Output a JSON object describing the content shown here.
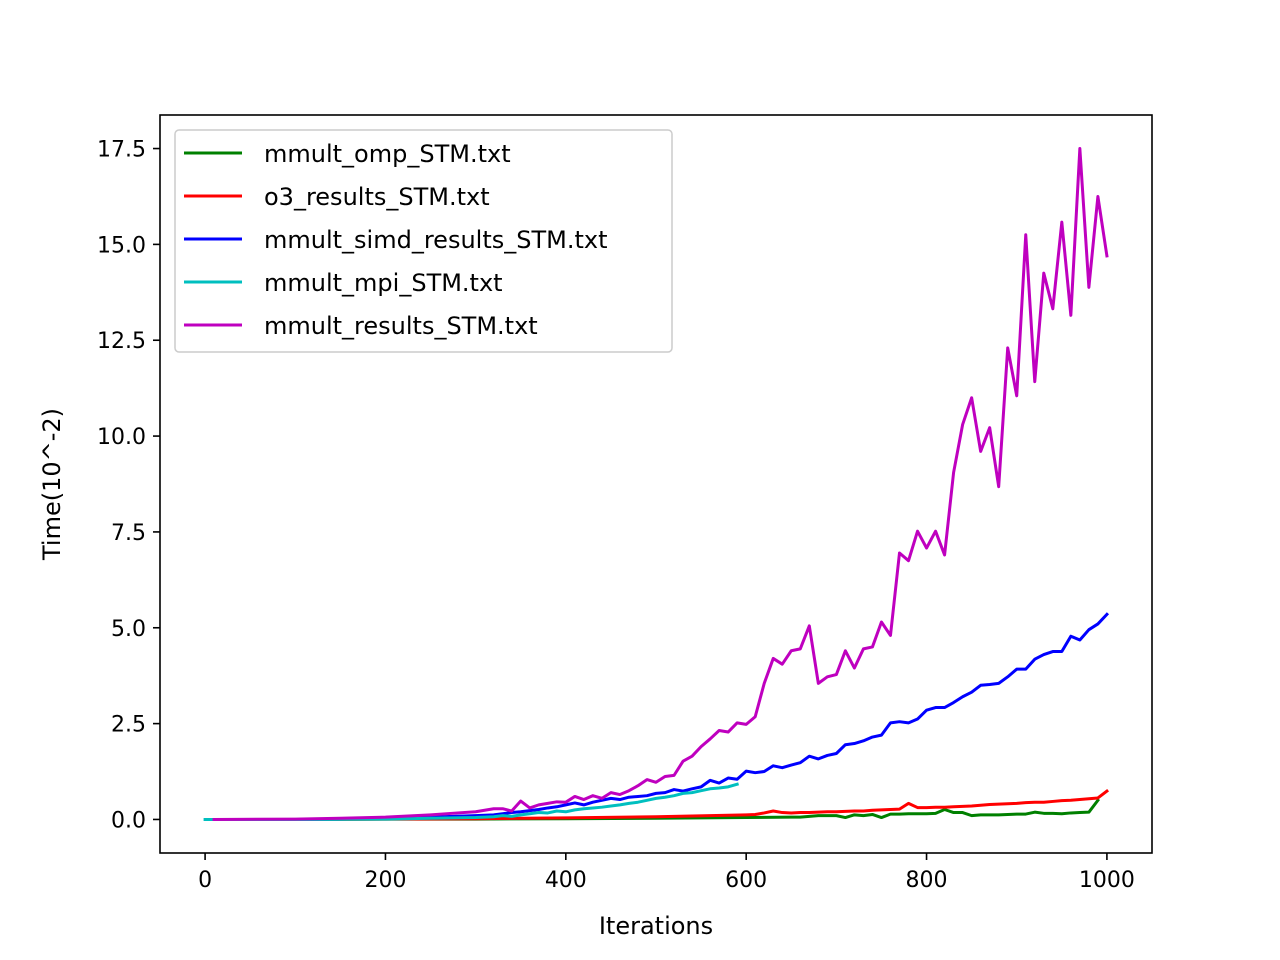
{
  "chart_data": {
    "type": "line",
    "title": "",
    "xlabel": "Iterations",
    "ylabel": "Time(10^-2)",
    "xlim": [
      -50,
      1050
    ],
    "ylim": [
      -0.875,
      18.375
    ],
    "xticks": [
      0,
      200,
      400,
      600,
      800,
      1000
    ],
    "xtick_labels": [
      "0",
      "200",
      "400",
      "600",
      "800",
      "1000"
    ],
    "yticks": [
      0.0,
      2.5,
      5.0,
      7.5,
      10.0,
      12.5,
      15.0,
      17.5
    ],
    "ytick_labels": [
      "0.0",
      "2.5",
      "5.0",
      "7.5",
      "10.0",
      "12.5",
      "15.0",
      "17.5"
    ],
    "grid": false,
    "legend_position": "upper-left",
    "series": [
      {
        "name": "mmult_omp_STM.txt",
        "color": "#008000",
        "x": [
          10,
          100,
          200,
          300,
          400,
          500,
          600,
          650,
          660,
          670,
          680,
          690,
          700,
          710,
          720,
          730,
          740,
          750,
          760,
          770,
          780,
          790,
          800,
          810,
          820,
          830,
          840,
          850,
          860,
          870,
          880,
          890,
          900,
          910,
          920,
          930,
          940,
          950,
          960,
          970,
          980,
          990
        ],
        "y": [
          0,
          0,
          0.01,
          0.01,
          0.02,
          0.03,
          0.05,
          0.06,
          0.06,
          0.08,
          0.1,
          0.1,
          0.1,
          0.05,
          0.12,
          0.1,
          0.13,
          0.05,
          0.14,
          0.14,
          0.15,
          0.15,
          0.15,
          0.16,
          0.26,
          0.18,
          0.18,
          0.1,
          0.12,
          0.12,
          0.12,
          0.13,
          0.14,
          0.14,
          0.19,
          0.16,
          0.16,
          0.15,
          0.17,
          0.18,
          0.19,
          0.5
        ]
      },
      {
        "name": "o3_results_STM.txt",
        "color": "#ff0000",
        "x": [
          10,
          100,
          200,
          300,
          400,
          500,
          600,
          610,
          620,
          630,
          640,
          650,
          660,
          670,
          680,
          690,
          700,
          710,
          720,
          730,
          740,
          750,
          760,
          770,
          780,
          790,
          800,
          810,
          820,
          830,
          840,
          850,
          860,
          870,
          880,
          890,
          900,
          910,
          920,
          930,
          940,
          950,
          960,
          970,
          980,
          990,
          1000
        ],
        "y": [
          0,
          0,
          0.01,
          0.02,
          0.04,
          0.07,
          0.12,
          0.13,
          0.17,
          0.22,
          0.18,
          0.17,
          0.18,
          0.18,
          0.19,
          0.2,
          0.2,
          0.21,
          0.22,
          0.22,
          0.24,
          0.25,
          0.26,
          0.27,
          0.42,
          0.31,
          0.31,
          0.32,
          0.32,
          0.33,
          0.34,
          0.35,
          0.37,
          0.39,
          0.4,
          0.41,
          0.42,
          0.44,
          0.45,
          0.45,
          0.47,
          0.49,
          0.5,
          0.52,
          0.54,
          0.56,
          0.74
        ]
      },
      {
        "name": "mmult_simd_results_STM.txt",
        "color": "#0000ff",
        "x": [
          10,
          100,
          150,
          200,
          250,
          300,
          320,
          330,
          340,
          350,
          360,
          370,
          380,
          390,
          400,
          410,
          420,
          430,
          440,
          450,
          460,
          470,
          480,
          490,
          500,
          510,
          520,
          530,
          540,
          550,
          560,
          570,
          580,
          590,
          600,
          610,
          620,
          630,
          640,
          650,
          660,
          670,
          680,
          690,
          700,
          710,
          720,
          730,
          740,
          750,
          760,
          770,
          780,
          790,
          800,
          810,
          820,
          830,
          840,
          850,
          860,
          870,
          880,
          890,
          900,
          910,
          920,
          930,
          940,
          950,
          960,
          970,
          980,
          990,
          1000
        ],
        "y": [
          0,
          0,
          0.01,
          0.03,
          0.06,
          0.1,
          0.12,
          0.15,
          0.18,
          0.2,
          0.23,
          0.26,
          0.3,
          0.33,
          0.38,
          0.43,
          0.38,
          0.45,
          0.5,
          0.55,
          0.52,
          0.58,
          0.6,
          0.62,
          0.68,
          0.7,
          0.78,
          0.74,
          0.8,
          0.85,
          1.02,
          0.95,
          1.08,
          1.05,
          1.26,
          1.22,
          1.25,
          1.4,
          1.35,
          1.42,
          1.48,
          1.65,
          1.58,
          1.67,
          1.72,
          1.95,
          1.98,
          2.05,
          2.15,
          2.2,
          2.52,
          2.55,
          2.52,
          2.62,
          2.85,
          2.92,
          2.92,
          3.05,
          3.2,
          3.32,
          3.5,
          3.52,
          3.55,
          3.72,
          3.92,
          3.92,
          4.18,
          4.3,
          4.38,
          4.38,
          4.78,
          4.68,
          4.95,
          5.1,
          5.35
        ]
      },
      {
        "name": "mmult_mpi_STM.txt",
        "color": "#00bfbf",
        "x": [
          0,
          100,
          200,
          250,
          300,
          320,
          330,
          340,
          350,
          360,
          370,
          380,
          390,
          400,
          410,
          420,
          430,
          440,
          450,
          460,
          470,
          480,
          490,
          500,
          510,
          520,
          530,
          540,
          550,
          560,
          570,
          580,
          590
        ],
        "y": [
          0,
          0,
          0.01,
          0.03,
          0.05,
          0.07,
          0.1,
          0.08,
          0.12,
          0.15,
          0.18,
          0.17,
          0.22,
          0.2,
          0.25,
          0.28,
          0.3,
          0.32,
          0.35,
          0.38,
          0.42,
          0.45,
          0.5,
          0.55,
          0.58,
          0.62,
          0.68,
          0.7,
          0.75,
          0.8,
          0.82,
          0.85,
          0.92
        ]
      },
      {
        "name": "mmult_results_STM.txt",
        "color": "#bf00bf",
        "x": [
          10,
          100,
          150,
          200,
          250,
          280,
          300,
          320,
          330,
          340,
          350,
          360,
          370,
          380,
          390,
          400,
          410,
          420,
          430,
          440,
          450,
          460,
          470,
          480,
          490,
          500,
          510,
          520,
          530,
          540,
          550,
          560,
          570,
          580,
          590,
          600,
          610,
          620,
          630,
          640,
          650,
          660,
          670,
          680,
          690,
          700,
          710,
          720,
          730,
          740,
          750,
          760,
          770,
          780,
          790,
          800,
          810,
          820,
          830,
          840,
          850,
          860,
          870,
          880,
          890,
          900,
          910,
          920,
          930,
          940,
          950,
          960,
          970,
          980,
          990,
          1000
        ],
        "y": [
          0,
          0.01,
          0.03,
          0.06,
          0.12,
          0.17,
          0.2,
          0.28,
          0.28,
          0.22,
          0.48,
          0.3,
          0.38,
          0.42,
          0.46,
          0.45,
          0.6,
          0.52,
          0.62,
          0.55,
          0.7,
          0.65,
          0.75,
          0.88,
          1.04,
          0.97,
          1.12,
          1.15,
          1.52,
          1.65,
          1.9,
          2.1,
          2.32,
          2.28,
          2.52,
          2.48,
          2.68,
          3.55,
          4.2,
          4.05,
          4.4,
          4.45,
          5.05,
          3.55,
          3.72,
          3.78,
          4.4,
          3.95,
          4.45,
          4.5,
          5.15,
          4.8,
          6.95,
          6.75,
          7.52,
          7.08,
          7.52,
          6.9,
          9.05,
          10.3,
          11.0,
          9.6,
          10.22,
          8.68,
          12.3,
          11.05,
          15.25,
          11.42,
          14.25,
          13.32,
          15.58,
          13.15,
          17.5,
          13.88,
          16.25,
          14.7
        ]
      }
    ]
  }
}
